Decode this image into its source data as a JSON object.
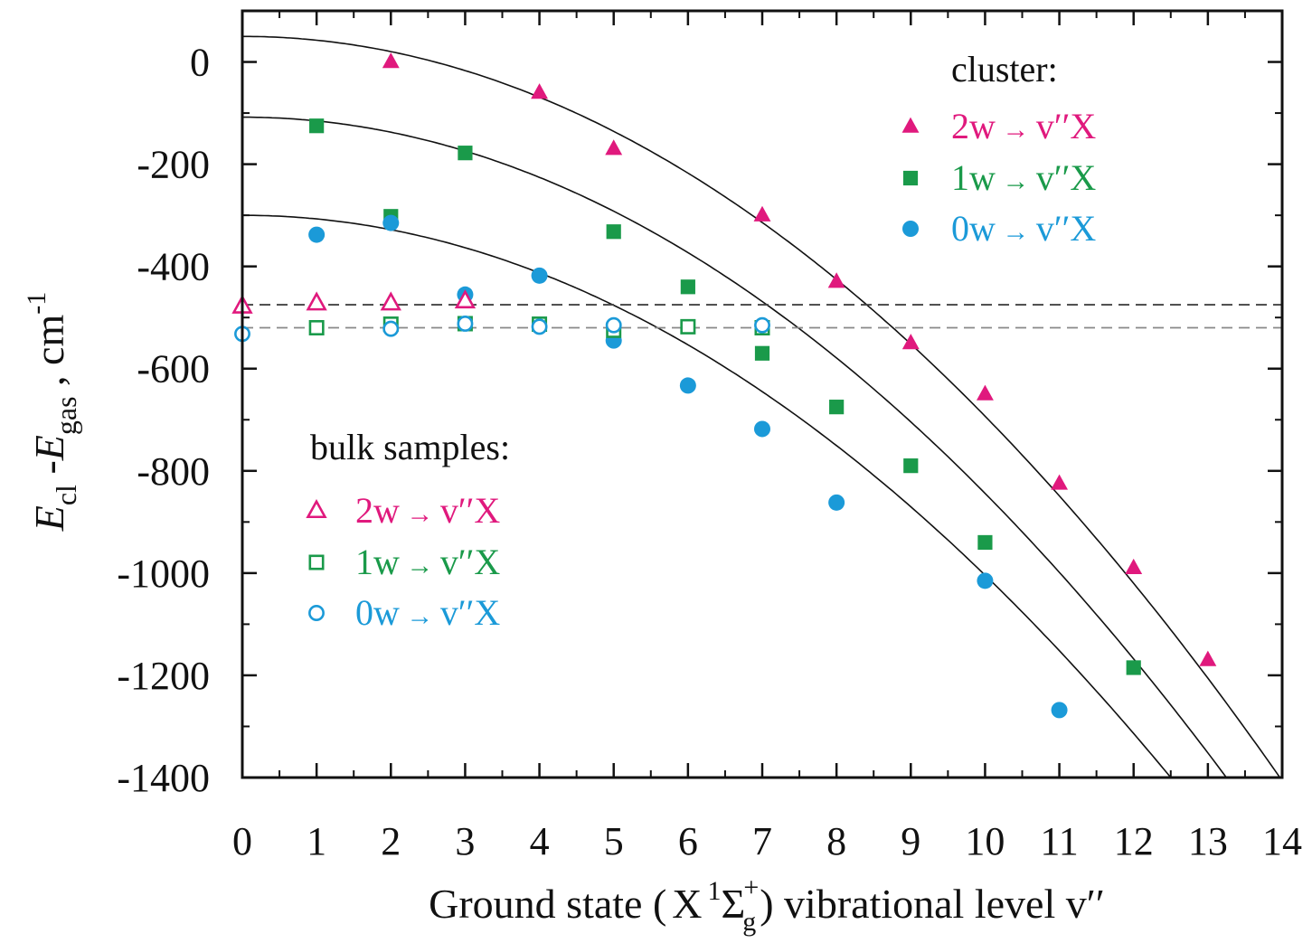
{
  "chart_data": {
    "type": "scatter",
    "xlabel_parts": {
      "prefix": "Ground state (",
      "term_x": "X",
      "sup": "1",
      "sigma": "Σ",
      "sigma_sup": "+",
      "sigma_sub": "g",
      "suffix": ") vibrational level v′′"
    },
    "ylabel_parts": {
      "e1": "E",
      "sub1": "cl",
      "dash": " -",
      "e2": "E",
      "sub2": "gas",
      "unit": " , cm",
      "sup": "-1"
    },
    "xlim": [
      0,
      14
    ],
    "ylim": [
      -1400,
      100
    ],
    "xticks": [
      0,
      1,
      2,
      3,
      4,
      5,
      6,
      7,
      8,
      9,
      10,
      11,
      12,
      13,
      14
    ],
    "yticks": [
      0,
      -200,
      -400,
      -600,
      -800,
      -1000,
      -1200,
      -1400
    ],
    "xtick_labels": [
      "0",
      "1",
      "2",
      "3",
      "4",
      "5",
      "6",
      "7",
      "8",
      "9",
      "10",
      "11",
      "12",
      "13",
      "14"
    ],
    "ytick_labels": [
      "0",
      "-200",
      "-400",
      "-600",
      "-800",
      "-1000",
      "-1200",
      "-1400"
    ],
    "legend_cluster_title": "cluster:",
    "legend_bulk_title": "bulk samples:",
    "series": [
      {
        "name": "2w→ v′′X",
        "group": "cluster",
        "marker": "triangle-filled",
        "color": "#e0197d",
        "legend_label": "2w",
        "legend_target": "v′′X",
        "x": [
          2,
          4,
          5,
          7,
          8,
          9,
          10,
          11,
          12,
          13
        ],
        "y": [
          0,
          -60,
          -170,
          -300,
          -430,
          -550,
          -650,
          -825,
          -990,
          -1170
        ]
      },
      {
        "name": "1w→ v′′X",
        "group": "cluster",
        "marker": "square-filled",
        "color": "#1a9a4a",
        "legend_label": "1w",
        "legend_target": "v′′X",
        "x": [
          1,
          3,
          2,
          5,
          6,
          7,
          8,
          9,
          10,
          12
        ],
        "y": [
          -125,
          -178,
          -302,
          -332,
          -440,
          -570,
          -675,
          -790,
          -940,
          -1185
        ]
      },
      {
        "name": "0w→ v′′X",
        "group": "cluster",
        "marker": "circle-filled",
        "color": "#1b9ad8",
        "legend_label": "0w",
        "legend_target": "v′′X",
        "x": [
          1,
          2,
          3,
          4,
          5,
          6,
          7,
          8,
          10,
          11
        ],
        "y": [
          -338,
          -315,
          -455,
          -418,
          -545,
          -633,
          -718,
          -862,
          -1015,
          -1268
        ]
      },
      {
        "name": "2w→ v′′X",
        "group": "bulk",
        "marker": "triangle-open",
        "color": "#e0197d",
        "legend_label": "2w",
        "legend_target": "v′′X",
        "x": [
          0,
          1,
          2,
          3
        ],
        "y": [
          -478,
          -472,
          -472,
          -468
        ]
      },
      {
        "name": "1w→ v′′X",
        "group": "bulk",
        "marker": "square-open",
        "color": "#1a9a4a",
        "legend_label": "1w",
        "legend_target": "v′′X",
        "x": [
          1,
          2,
          3,
          4,
          5,
          6,
          7
        ],
        "y": [
          -520,
          -513,
          -512,
          -513,
          -525,
          -518,
          -520
        ]
      },
      {
        "name": "0w→ v′′X",
        "group": "bulk",
        "marker": "circle-open",
        "color": "#1b9ad8",
        "legend_label": "0w",
        "legend_target": "v′′X",
        "x": [
          0,
          2,
          3,
          4,
          5,
          7
        ],
        "y": [
          -532,
          -522,
          -512,
          -518,
          -515,
          -515
        ]
      }
    ],
    "fit_curves": [
      {
        "vertex_y": 50,
        "coef": -7.43
      },
      {
        "vertex_y": -108,
        "coef": -7.36
      },
      {
        "vertex_y": -300,
        "coef": -7.04
      }
    ],
    "reference_lines": [
      {
        "y": -475,
        "style": "dashed",
        "color": "#444444"
      },
      {
        "y": -520,
        "style": "dashed",
        "color": "#888888"
      }
    ],
    "grid": false,
    "legend_position": "top-right (cluster) and middle-left (bulk samples)"
  }
}
